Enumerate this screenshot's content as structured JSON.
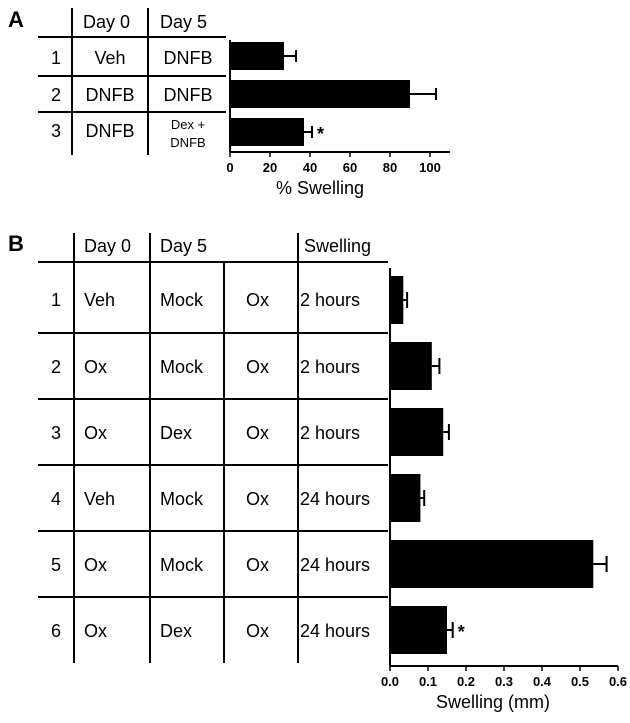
{
  "panels": {
    "A": {
      "letter": "A",
      "headers": [
        "Day 0",
        "Day 5"
      ],
      "rows": [
        {
          "num": "1",
          "day0": "Veh",
          "day5": "DNFB"
        },
        {
          "num": "2",
          "day0": "DNFB",
          "day5": "DNFB"
        },
        {
          "num": "3",
          "day0": "DNFB",
          "day5_line1": "Dex +",
          "day5_line2": "DNFB"
        }
      ]
    },
    "B": {
      "letter": "B",
      "headers": [
        "Day 0",
        "Day 5",
        "Swelling"
      ],
      "rows": [
        {
          "num": "1",
          "day0": "Veh",
          "day5a": "Mock",
          "day5b": "Ox",
          "swelling": "2 hours"
        },
        {
          "num": "2",
          "day0": "Ox",
          "day5a": "Mock",
          "day5b": "Ox",
          "swelling": "2 hours"
        },
        {
          "num": "3",
          "day0": "Ox",
          "day5a": "Dex",
          "day5b": "Ox",
          "swelling": "2 hours"
        },
        {
          "num": "4",
          "day0": "Veh",
          "day5a": "Mock",
          "day5b": "Ox",
          "swelling": "24 hours"
        },
        {
          "num": "5",
          "day0": "Ox",
          "day5a": "Mock",
          "day5b": "Ox",
          "swelling": "24 hours"
        },
        {
          "num": "6",
          "day0": "Ox",
          "day5a": "Dex",
          "day5b": "Ox",
          "swelling": "24 hours"
        }
      ]
    }
  },
  "chart_data": [
    {
      "type": "bar",
      "orientation": "horizontal",
      "categories": [
        "1",
        "2",
        "3"
      ],
      "values": [
        27,
        90,
        37
      ],
      "errors": [
        6,
        13,
        4
      ],
      "significance": [
        "",
        "",
        "*"
      ],
      "xlabel": "% Swelling",
      "xlim": [
        0,
        110
      ],
      "xticks": [
        "0",
        "20",
        "40",
        "60",
        "80",
        "100"
      ],
      "xtick_values": [
        0,
        20,
        40,
        60,
        80,
        100
      ],
      "bar_color": "#000000"
    },
    {
      "type": "bar",
      "orientation": "horizontal",
      "categories": [
        "1",
        "2",
        "3",
        "4",
        "5",
        "6"
      ],
      "values": [
        0.035,
        0.11,
        0.14,
        0.08,
        0.535,
        0.15
      ],
      "errors": [
        0.01,
        0.02,
        0.015,
        0.01,
        0.035,
        0.015
      ],
      "significance": [
        "",
        "",
        "",
        "",
        "",
        "*"
      ],
      "xlabel": "Swelling (mm)",
      "xlim": [
        0,
        0.6
      ],
      "xticks": [
        "0.0",
        "0.1",
        "0.2",
        "0.3",
        "0.4",
        "0.5",
        "0.6"
      ],
      "xtick_values": [
        0,
        0.1,
        0.2,
        0.3,
        0.4,
        0.5,
        0.6
      ],
      "bar_color": "#000000"
    }
  ]
}
